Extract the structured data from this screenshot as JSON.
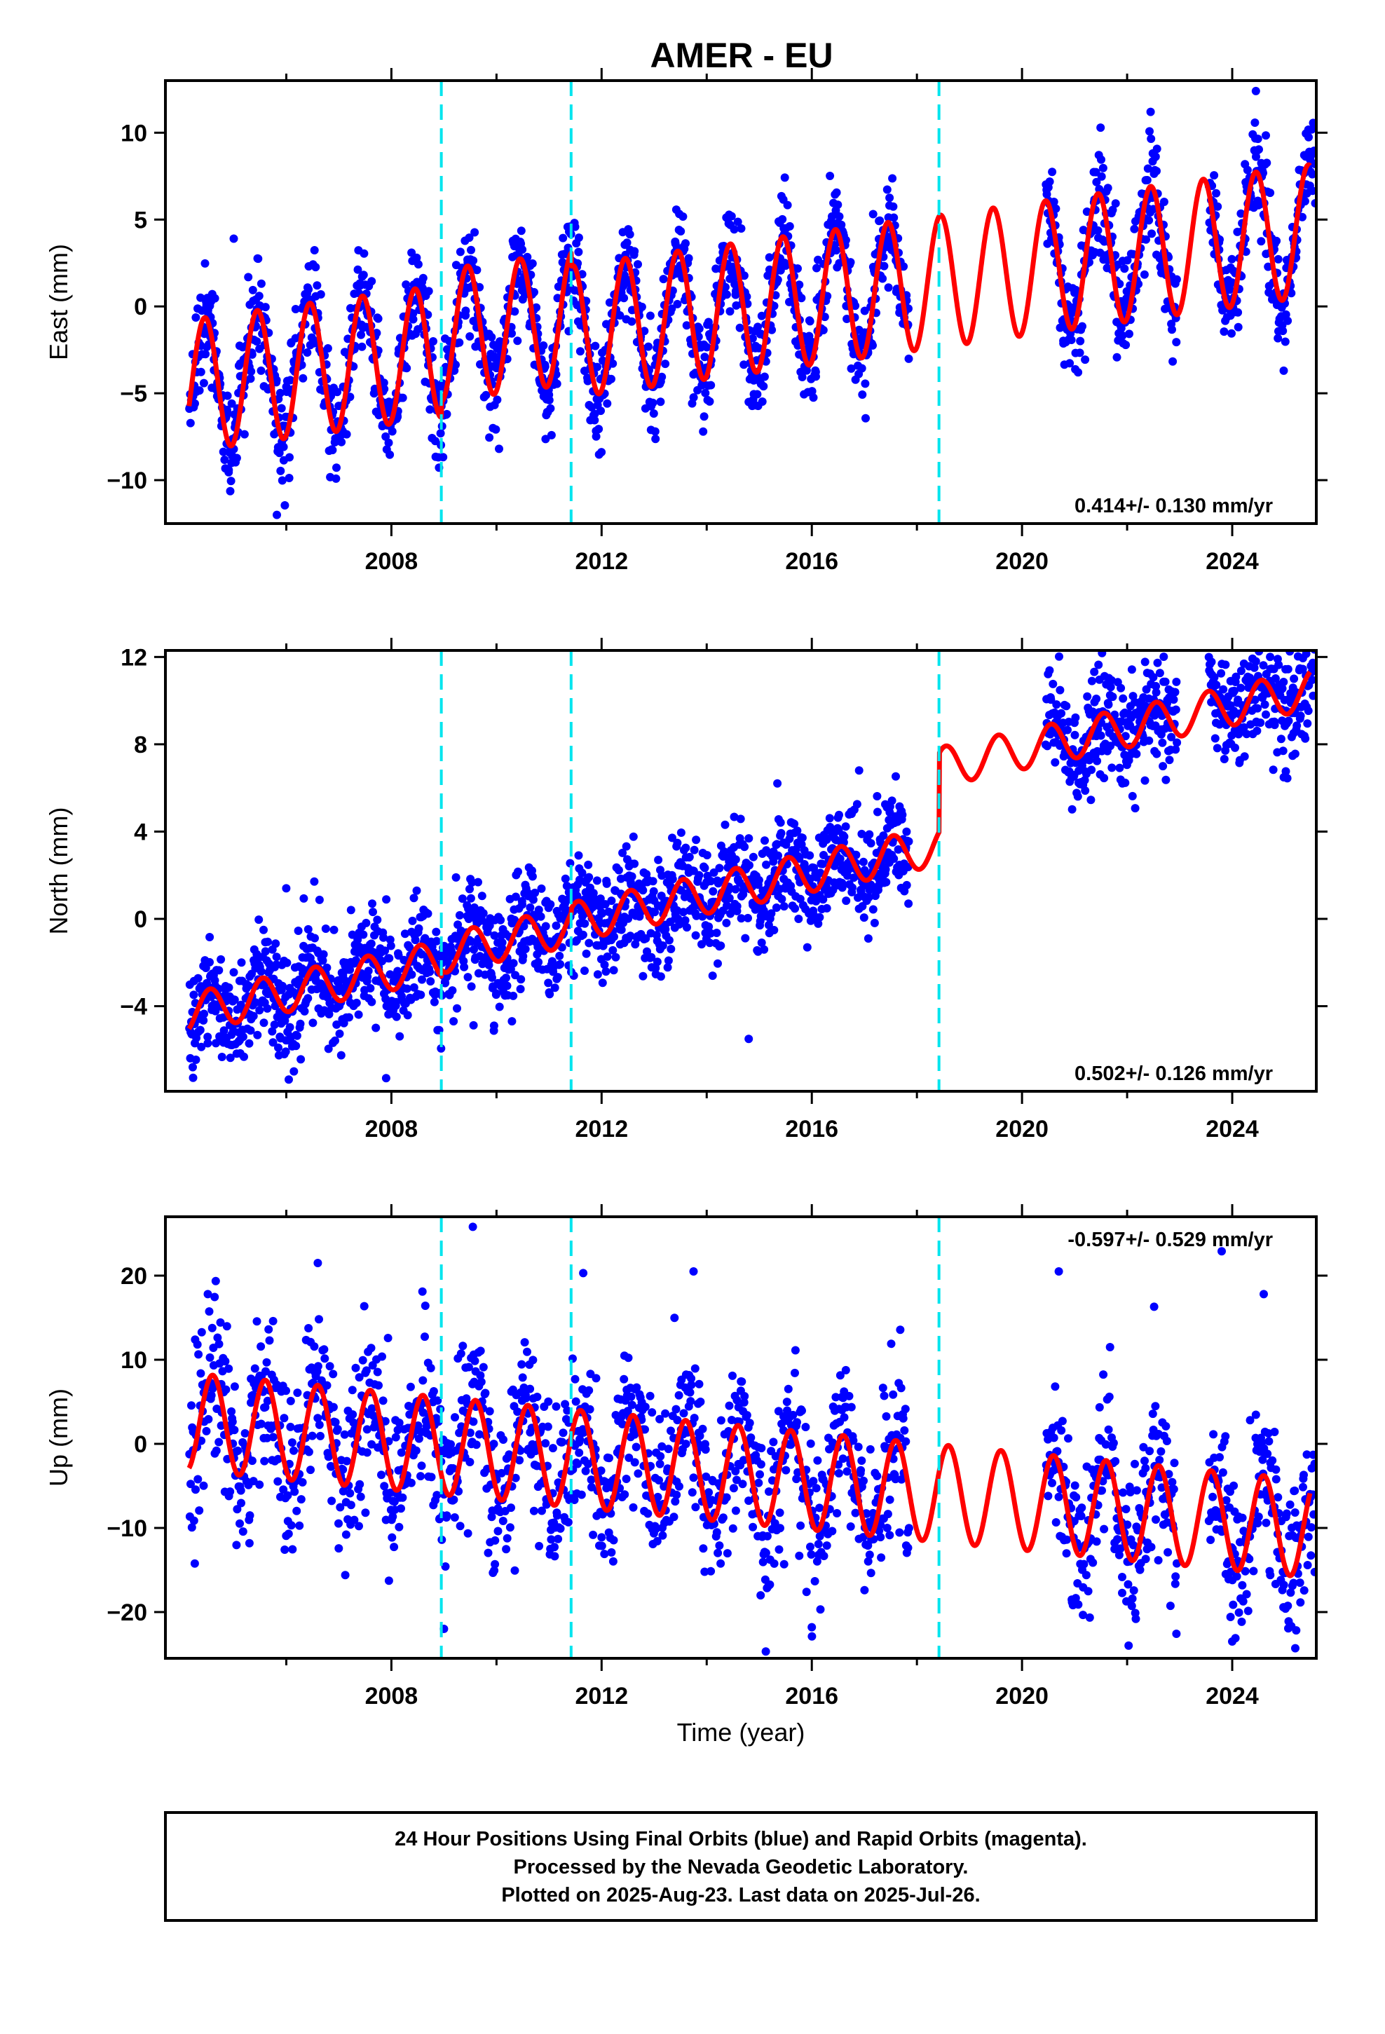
{
  "title": "AMER - EU",
  "colors": {
    "data_points": "#0000ff",
    "model_curve": "#ff0000",
    "offset_lines": "#00e5ee",
    "frame": "#000000"
  },
  "footer": {
    "line1": "24 Hour Positions Using Final Orbits (blue) and Rapid Orbits (magenta).",
    "line2": "Processed by the Nevada Geodetic Laboratory.",
    "line3": "Plotted on 2025-Aug-23. Last data on 2025-Jul-26."
  },
  "chart_data": [
    {
      "type": "scatter",
      "component": "East",
      "ylabel": "East (mm)",
      "xlabel": "",
      "xlim": [
        2003.7,
        2025.6
      ],
      "ylim": [
        -12.5,
        13
      ],
      "xticks": [
        2008,
        2012,
        2016,
        2020,
        2024
      ],
      "xtick_labels": [
        "2008",
        "2012",
        "2016",
        "2020",
        "2024"
      ],
      "yticks": [
        -10,
        -5,
        0,
        5,
        10
      ],
      "ytick_labels": [
        "−10",
        "−5",
        "0",
        "5",
        "10"
      ],
      "offset_epochs": [
        2008.95,
        2011.42,
        2018.42
      ],
      "rate_label": "0.414+/- 0.130 mm/yr",
      "rate_position": "bottom-right",
      "model": {
        "start_year": 2004.15,
        "end_year": 2025.48,
        "trend_mm_per_yr": 0.414,
        "annual_amplitude_mm": 3.8,
        "peak_phase_year": 0.45,
        "steps": [
          {
            "epoch": 2008.95,
            "mm": 0.9
          },
          {
            "epoch": 2011.42,
            "mm": -0.8
          },
          {
            "epoch": 2018.42,
            "mm": 0
          }
        ]
      },
      "observations": {
        "segments": [
          [
            2004.15,
            2017.85
          ],
          [
            2020.45,
            2022.95
          ],
          [
            2023.55,
            2025.58
          ]
        ],
        "scatter_mm": 1.5,
        "daily_points_per_year": 110
      },
      "outliers": [
        {
          "x": 2005.82,
          "y": -12.0
        },
        {
          "x": 2024.45,
          "y": 12.4
        },
        {
          "x": 2024.98,
          "y": -3.7
        },
        {
          "x": 2013.02,
          "y": -7.2
        },
        {
          "x": 2014.8,
          "y": -5.5
        },
        {
          "x": 2005.0,
          "y": 3.9
        }
      ]
    },
    {
      "type": "scatter",
      "component": "North",
      "ylabel": "North (mm)",
      "xlabel": "",
      "xlim": [
        2003.7,
        2025.6
      ],
      "ylim": [
        -7.9,
        12.3
      ],
      "xticks": [
        2008,
        2012,
        2016,
        2020,
        2024
      ],
      "xtick_labels": [
        "2008",
        "2012",
        "2016",
        "2020",
        "2024"
      ],
      "yticks": [
        -4,
        0,
        4,
        8,
        12
      ],
      "ytick_labels": [
        "−4",
        "0",
        "4",
        "8",
        "12"
      ],
      "offset_epochs": [
        2008.95,
        2011.42,
        2018.42
      ],
      "rate_label": "0.502+/- 0.126 mm/yr",
      "rate_position": "bottom-right",
      "model": {
        "start_year": 2004.15,
        "end_year": 2025.48,
        "trend_mm_per_yr": 0.502,
        "annual_amplitude_mm": 0.9,
        "peak_phase_year": 0.55,
        "steps": [
          {
            "epoch": 2008.95,
            "mm": 0.3
          },
          {
            "epoch": 2011.42,
            "mm": 0.2
          },
          {
            "epoch": 2018.42,
            "mm": 3.6
          }
        ]
      },
      "observations": {
        "segments": [
          [
            2004.15,
            2017.85
          ],
          [
            2020.45,
            2022.95
          ],
          [
            2023.55,
            2025.58
          ]
        ],
        "scatter_mm": 1.25,
        "daily_points_per_year": 110
      },
      "outliers": [
        {
          "x": 2007.9,
          "y": -7.3
        },
        {
          "x": 2014.8,
          "y": -5.5
        },
        {
          "x": 2024.45,
          "y": 11.8
        },
        {
          "x": 2006.0,
          "y": 1.4
        },
        {
          "x": 2016.9,
          "y": 6.8
        }
      ]
    },
    {
      "type": "scatter",
      "component": "Up",
      "ylabel": "Up (mm)",
      "xlabel": "Time (year)",
      "xlim": [
        2003.7,
        2025.6
      ],
      "ylim": [
        -25.5,
        27
      ],
      "xticks": [
        2008,
        2012,
        2016,
        2020,
        2024
      ],
      "xtick_labels": [
        "2008",
        "2012",
        "2016",
        "2020",
        "2024"
      ],
      "yticks": [
        -20,
        -10,
        0,
        10,
        20
      ],
      "ytick_labels": [
        "−20",
        "−10",
        "0",
        "10",
        "20"
      ],
      "offset_epochs": [
        2008.95,
        2011.42,
        2018.42
      ],
      "rate_label": "-0.597+/- 0.529 mm/yr",
      "rate_position": "top-right",
      "model": {
        "start_year": 2004.15,
        "end_year": 2025.48,
        "trend_mm_per_yr": -0.597,
        "annual_amplitude_mm": 5.8,
        "peak_phase_year": 0.6,
        "steps": [
          {
            "epoch": 2008.95,
            "mm": 0
          },
          {
            "epoch": 2011.42,
            "mm": 0
          },
          {
            "epoch": 2018.42,
            "mm": 0
          }
        ]
      },
      "observations": {
        "segments": [
          [
            2004.15,
            2017.85
          ],
          [
            2020.45,
            2022.95
          ],
          [
            2023.55,
            2025.58
          ]
        ],
        "scatter_mm": 5.0,
        "daily_points_per_year": 90
      },
      "outliers": [
        {
          "x": 2009.55,
          "y": 25.8
        },
        {
          "x": 2006.6,
          "y": 21.5
        },
        {
          "x": 2011.65,
          "y": 20.3
        },
        {
          "x": 2013.75,
          "y": 20.5
        },
        {
          "x": 2020.7,
          "y": 20.5
        },
        {
          "x": 2023.8,
          "y": 22.9
        },
        {
          "x": 2016.0,
          "y": -21.8
        },
        {
          "x": 2024.0,
          "y": -23.5
        },
        {
          "x": 2025.2,
          "y": -24.3
        },
        {
          "x": 2009.0,
          "y": -22.0
        },
        {
          "x": 2024.6,
          "y": 17.8
        }
      ]
    }
  ]
}
